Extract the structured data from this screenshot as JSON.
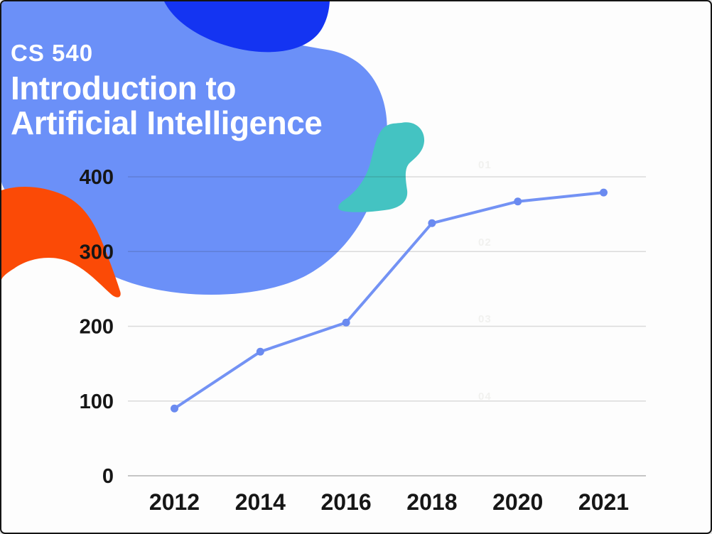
{
  "slide": {
    "course_code": "CS 540",
    "title_line1": "Introduction to",
    "title_line2": "Artificial Intelligence"
  },
  "watermark_steps": [
    "01",
    "02",
    "03",
    "04"
  ],
  "colors": {
    "background": "#fdfdfd",
    "border": "#141414",
    "blob_light_blue": "#6b90f8",
    "blob_dark_blue": "#1434f2",
    "blob_teal": "#44c3c2",
    "blob_orange": "#fb4a06",
    "line": "#7392f4",
    "point": "#6a8af0",
    "gridline": "rgba(40,40,40,0.16)",
    "axis_line": "rgba(40,40,40,0.26)",
    "tick_text": "#161616",
    "title_text": "#ffffff",
    "watermark_text": "#f1f1ef"
  },
  "chart_data": {
    "type": "line",
    "title": "",
    "xlabel": "",
    "ylabel": "",
    "categories": [
      "2012",
      "2014",
      "2016",
      "2018",
      "2020",
      "2021"
    ],
    "values": [
      90,
      166,
      205,
      338,
      367,
      379
    ],
    "ylim": [
      0,
      400
    ],
    "yticks": [
      0,
      100,
      200,
      300,
      400
    ],
    "grid": true,
    "legend": false
  }
}
